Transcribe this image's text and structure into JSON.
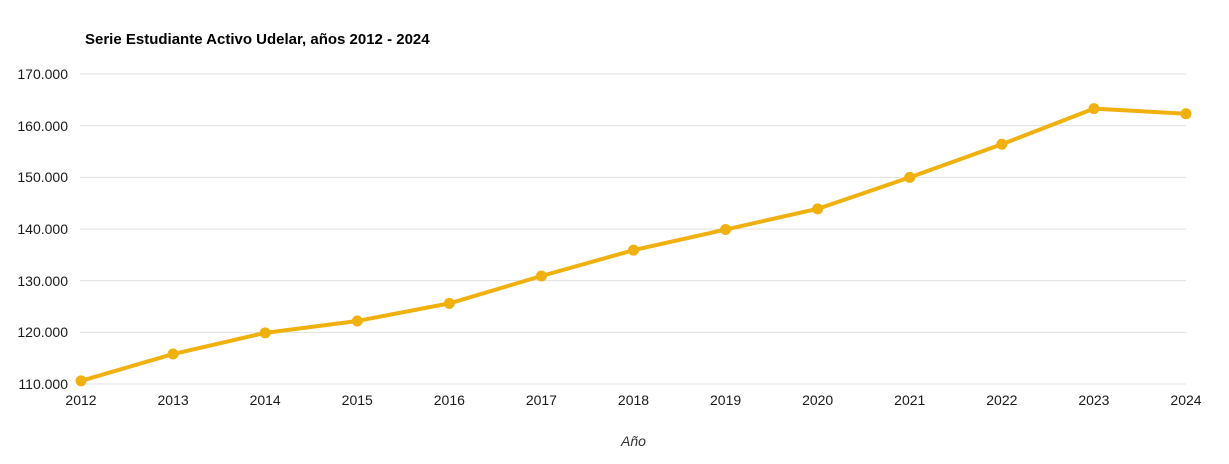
{
  "chart_data": {
    "type": "line",
    "title": "Serie Estudiante Activo Udelar, años 2012 - 2024",
    "xlabel": "Año",
    "ylabel": "",
    "categories": [
      "2012",
      "2013",
      "2014",
      "2015",
      "2016",
      "2017",
      "2018",
      "2019",
      "2020",
      "2021",
      "2022",
      "2023",
      "2024"
    ],
    "values": [
      110600,
      115800,
      119900,
      122200,
      125600,
      130900,
      135900,
      139900,
      143900,
      150000,
      156400,
      163300,
      162300
    ],
    "ylim": [
      110000,
      170000
    ],
    "y_ticks": [
      110000,
      120000,
      130000,
      140000,
      150000,
      160000,
      170000
    ],
    "y_tick_labels": [
      "110.000",
      "120.000",
      "130.000",
      "140.000",
      "150.000",
      "160.000",
      "170.000"
    ],
    "grid": "horizontal",
    "legend": "none",
    "marker": "circle",
    "colors": {
      "line": "#F0B10E",
      "marker": "#F0B10E",
      "grid": "#E0E0E0",
      "tick_text": "#1A1A1A",
      "title_text": "#000000",
      "axis_title_text": "#333333"
    }
  }
}
